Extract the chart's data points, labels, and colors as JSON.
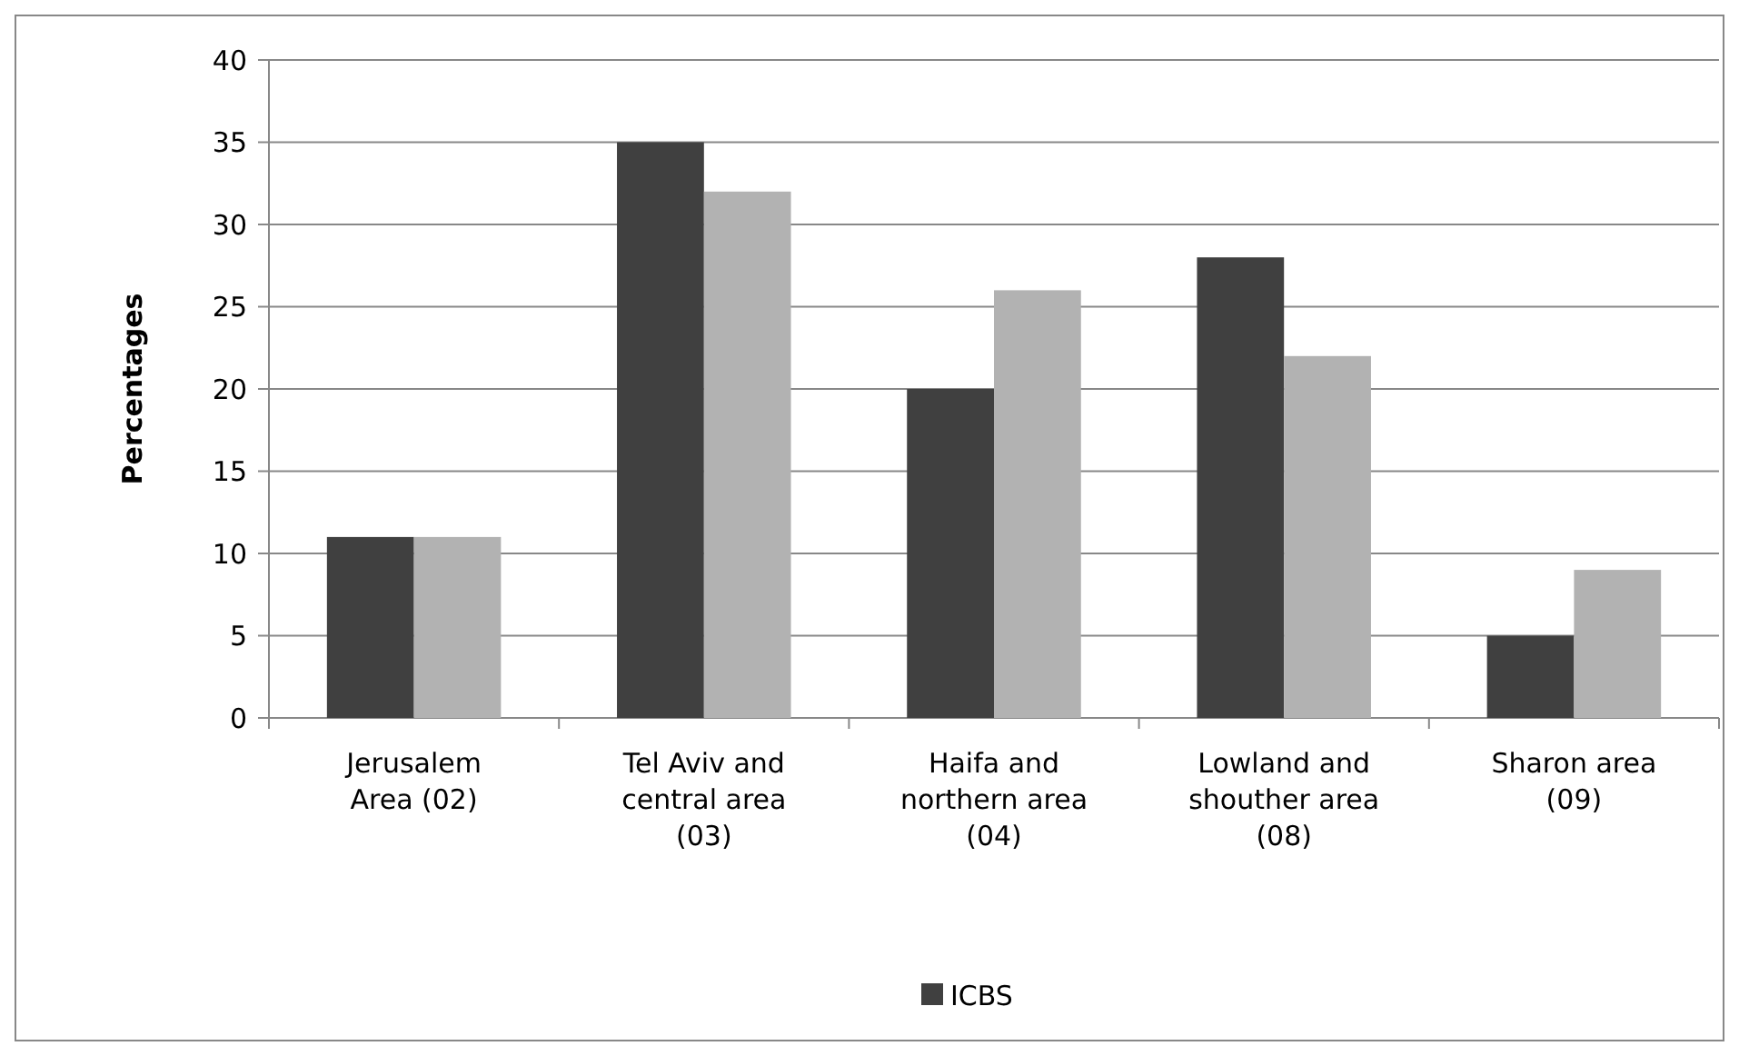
{
  "chart_data": {
    "type": "bar",
    "ylabel": "Percentages",
    "categories": [
      "Jerusalem Area (02)",
      "Tel Aviv and central area (03)",
      "Haifa and northern area (04)",
      "Lowland and shouther area (08)",
      "Sharon area (09)"
    ],
    "series": [
      {
        "name": "ICBS",
        "color": "#404040",
        "values": [
          11,
          35,
          20,
          28,
          5
        ]
      },
      {
        "color": "#b2b2b2",
        "values": [
          11,
          32,
          26,
          22,
          9
        ]
      }
    ],
    "ylim": [
      0,
      40
    ],
    "yticks": [
      0,
      5,
      10,
      15,
      20,
      25,
      30,
      35,
      40
    ],
    "grid": "y",
    "legend": "bottom"
  }
}
